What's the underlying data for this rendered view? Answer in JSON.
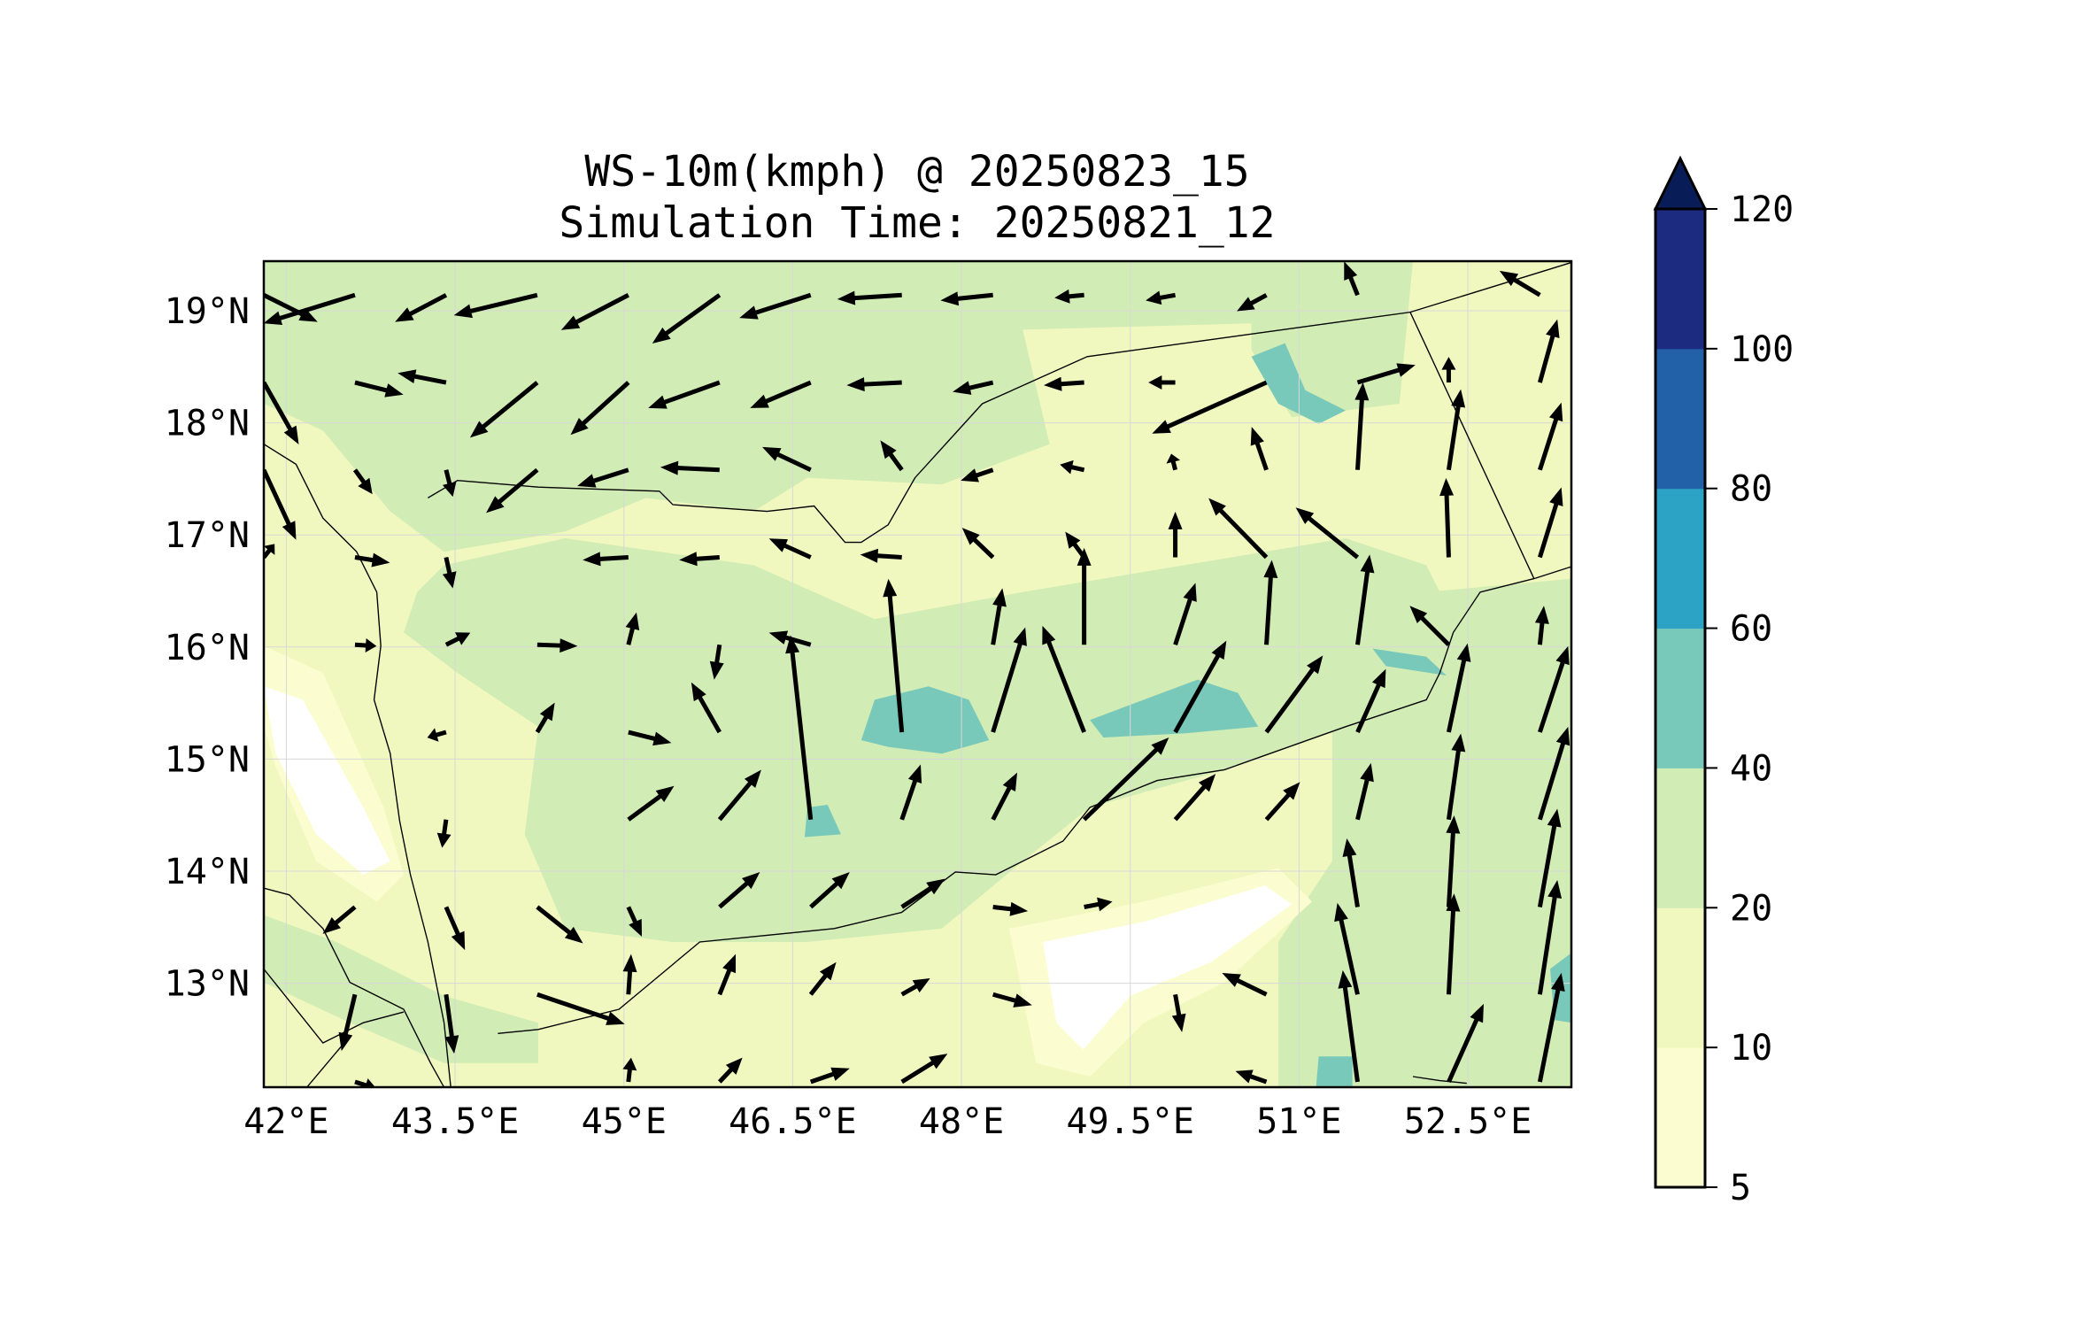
{
  "chart_data": {
    "type": "quiver-contour-map",
    "title_line1": "WS-10m(kmph) @ 20250823_15",
    "title_line2": "Simulation Time: 20250821_12",
    "lon_range": [
      41.8,
      53.42
    ],
    "lat_range": [
      12.07,
      19.44
    ],
    "xticks": [
      {
        "value": 42,
        "label": "42°E"
      },
      {
        "value": 43.5,
        "label": "43.5°E"
      },
      {
        "value": 45,
        "label": "45°E"
      },
      {
        "value": 46.5,
        "label": "46.5°E"
      },
      {
        "value": 48,
        "label": "48°E"
      },
      {
        "value": 49.5,
        "label": "49.5°E"
      },
      {
        "value": 51,
        "label": "51°E"
      },
      {
        "value": 52.5,
        "label": "52.5°E"
      }
    ],
    "yticks": [
      {
        "value": 19,
        "label": "19°N"
      },
      {
        "value": 18,
        "label": "18°N"
      },
      {
        "value": 17,
        "label": "17°N"
      },
      {
        "value": 16,
        "label": "16°N"
      },
      {
        "value": 15,
        "label": "15°N"
      },
      {
        "value": 14,
        "label": "14°N"
      },
      {
        "value": 13,
        "label": "13°N"
      }
    ],
    "grid": true,
    "colorbar": {
      "levels": [
        5,
        10,
        20,
        40,
        60,
        80,
        100,
        120
      ],
      "labels": [
        "5",
        "10",
        "20",
        "40",
        "60",
        "80",
        "100",
        "120"
      ],
      "colors": [
        "#fbfdd0",
        "#f0f8bf",
        "#d1ecb4",
        "#79c9ba",
        "#2ca3c4",
        "#2260a8",
        "#1c2b7f"
      ],
      "extend_color": "#081d58",
      "extend": "max",
      "placement": "right"
    },
    "vectors": {
      "lon0": 41.8,
      "dlon": 0.81,
      "lat0": 19.14,
      "dlat": -0.78,
      "rows": [
        [
          [
            40,
            -20
          ],
          [
            -68,
            -21
          ],
          [
            -38,
            -20
          ],
          [
            -62,
            -15
          ],
          [
            -50,
            -26
          ],
          [
            -50,
            -36
          ],
          [
            -53,
            -17
          ],
          [
            -48,
            -3
          ],
          [
            -39,
            -4
          ],
          [
            -22,
            -2
          ],
          [
            -22,
            -4
          ],
          [
            -22,
            -12
          ],
          [
            -10,
            25
          ],
          [
            0,
            0
          ],
          [
            -30,
            18
          ]
        ],
        [
          [
            26,
            -46
          ],
          [
            36,
            -9
          ],
          [
            -36,
            7
          ],
          [
            -50,
            -41
          ],
          [
            -43,
            -39
          ],
          [
            -53,
            -19
          ],
          [
            -45,
            -19
          ],
          [
            -41,
            -2
          ],
          [
            -30,
            -7
          ],
          [
            -30,
            -2
          ],
          [
            -20,
            0
          ],
          [
            -85,
            -38
          ],
          [
            43,
            13
          ],
          [
            0,
            19
          ],
          [
            13,
            47
          ]
        ],
        [
          [
            24,
            -52
          ],
          [
            13,
            -18
          ],
          [
            5,
            -20
          ],
          [
            -38,
            -32
          ],
          [
            -38,
            -12
          ],
          [
            -44,
            2
          ],
          [
            -36,
            17
          ],
          [
            -16,
            22
          ],
          [
            -24,
            -8
          ],
          [
            -18,
            4
          ],
          [
            -3,
            12
          ],
          [
            -11,
            32
          ],
          [
            4,
            65
          ],
          [
            9,
            60
          ],
          [
            16,
            50
          ]
        ],
        [
          [
            8,
            10
          ],
          [
            26,
            -4
          ],
          [
            5,
            -23
          ],
          [
            0,
            0
          ],
          [
            -34,
            -2
          ],
          [
            -30,
            -2
          ],
          [
            -31,
            14
          ],
          [
            -31,
            2
          ],
          [
            -23,
            22
          ],
          [
            -14,
            19
          ],
          [
            0,
            34
          ],
          [
            -43,
            44
          ],
          [
            -46,
            37
          ],
          [
            -2,
            59
          ],
          [
            16,
            52
          ]
        ],
        [
          [
            0,
            0
          ],
          [
            16,
            -1
          ],
          [
            18,
            9
          ],
          [
            30,
            -1
          ],
          [
            6,
            24
          ],
          [
            -4,
            -26
          ],
          [
            -31,
            9
          ],
          [
            0,
            0
          ],
          [
            7,
            42
          ],
          [
            0,
            72
          ],
          [
            15,
            46
          ],
          [
            4,
            63
          ],
          [
            9,
            67
          ],
          [
            -29,
            29
          ],
          [
            3,
            29
          ]
        ],
        [
          [
            0,
            0
          ],
          [
            0,
            0
          ],
          [
            -14,
            -4
          ],
          [
            13,
            22
          ],
          [
            32,
            -8
          ],
          [
            -21,
            37
          ],
          [
            0,
            0
          ],
          [
            -10,
            114
          ],
          [
            24,
            78
          ],
          [
            -31,
            79
          ],
          [
            38,
            68
          ],
          [
            42,
            57
          ],
          [
            21,
            47
          ],
          [
            14,
            66
          ],
          [
            21,
            64
          ]
        ],
        [
          [
            0,
            0
          ],
          [
            0,
            0
          ],
          [
            -3,
            -21
          ],
          [
            0,
            0
          ],
          [
            34,
            25
          ],
          [
            31,
            37
          ],
          [
            -15,
            137
          ],
          [
            14,
            41
          ],
          [
            18,
            35
          ],
          [
            63,
            61
          ],
          [
            30,
            34
          ],
          [
            25,
            28
          ],
          [
            10,
            42
          ],
          [
            9,
            64
          ],
          [
            21,
            69
          ]
        ],
        [
          [
            0,
            0
          ],
          [
            -24,
            -20
          ],
          [
            14,
            -32
          ],
          [
            34,
            -27
          ],
          [
            10,
            -22
          ],
          [
            30,
            26
          ],
          [
            29,
            26
          ],
          [
            32,
            21
          ],
          [
            26,
            -3
          ],
          [
            21,
            4
          ],
          [
            0,
            0
          ],
          [
            0,
            0
          ],
          [
            -8,
            51
          ],
          [
            4,
            68
          ],
          [
            13,
            73
          ]
        ],
        [
          [
            0,
            0
          ],
          [
            -10,
            -42
          ],
          [
            6,
            -44
          ],
          [
            65,
            -22
          ],
          [
            2,
            30
          ],
          [
            12,
            30
          ],
          [
            19,
            24
          ],
          [
            21,
            12
          ],
          [
            29,
            -8
          ],
          [
            0,
            0
          ],
          [
            5,
            -28
          ],
          [
            -33,
            16
          ],
          [
            -15,
            68
          ],
          [
            4,
            75
          ],
          [
            13,
            85
          ]
        ],
        [
          [
            0,
            0
          ],
          [
            16,
            -5
          ],
          [
            0,
            0
          ],
          [
            0,
            0
          ],
          [
            2,
            18
          ],
          [
            17,
            18
          ],
          [
            29,
            10
          ],
          [
            34,
            21
          ],
          [
            0,
            0
          ],
          [
            0,
            0
          ],
          [
            0,
            0
          ],
          [
            -23,
            8
          ],
          [
            -11,
            83
          ],
          [
            26,
            58
          ],
          [
            16,
            81
          ]
        ]
      ]
    }
  }
}
